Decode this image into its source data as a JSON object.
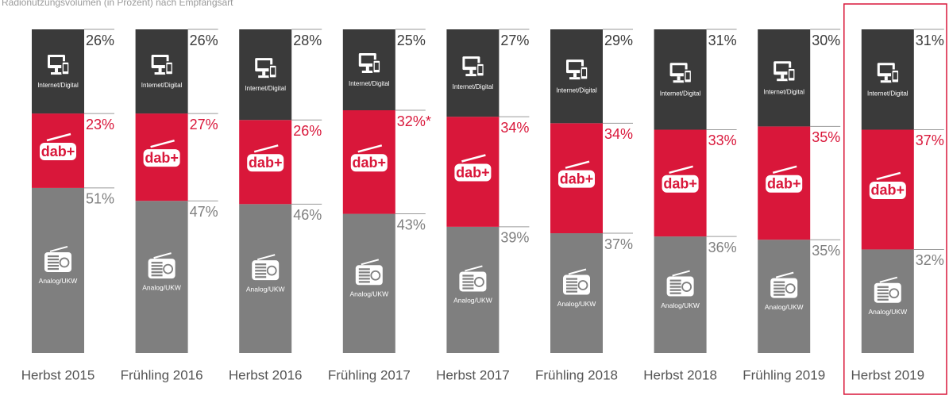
{
  "chart_data": {
    "type": "stacked_bar",
    "title": "Radionutzungsvolumen (in Prozent) nach Empfangsart",
    "categories": [
      "Herbst 2015",
      "Frühling 2016",
      "Herbst 2016",
      "Frühling 2017",
      "Herbst 2017",
      "Frühling 2018",
      "Herbst 2018",
      "Frühling 2019",
      "Herbst 2019"
    ],
    "series": [
      {
        "name": "Analog/UKW",
        "color": "#7f7f7f",
        "values": [
          51,
          47,
          46,
          43,
          39,
          37,
          36,
          35,
          32
        ],
        "value_labels": [
          "51%",
          "47%",
          "46%",
          "43%",
          "39%",
          "37%",
          "36%",
          "35%",
          "32%"
        ]
      },
      {
        "name": "dab+",
        "color": "#d9173a",
        "values": [
          23,
          27,
          26,
          32,
          34,
          34,
          33,
          35,
          37
        ],
        "value_labels": [
          "23%",
          "27%",
          "26%",
          "32%*",
          "34%",
          "34%",
          "33%",
          "35%",
          "37%"
        ]
      },
      {
        "name": "Internet/Digital",
        "color": "#3a3a3a",
        "values": [
          26,
          26,
          28,
          25,
          27,
          29,
          31,
          30,
          31
        ],
        "value_labels": [
          "26%",
          "26%",
          "28%",
          "25%",
          "27%",
          "29%",
          "31%",
          "30%",
          "31%"
        ]
      }
    ],
    "ylim": [
      0,
      100
    ],
    "highlight": "Herbst 2019"
  }
}
